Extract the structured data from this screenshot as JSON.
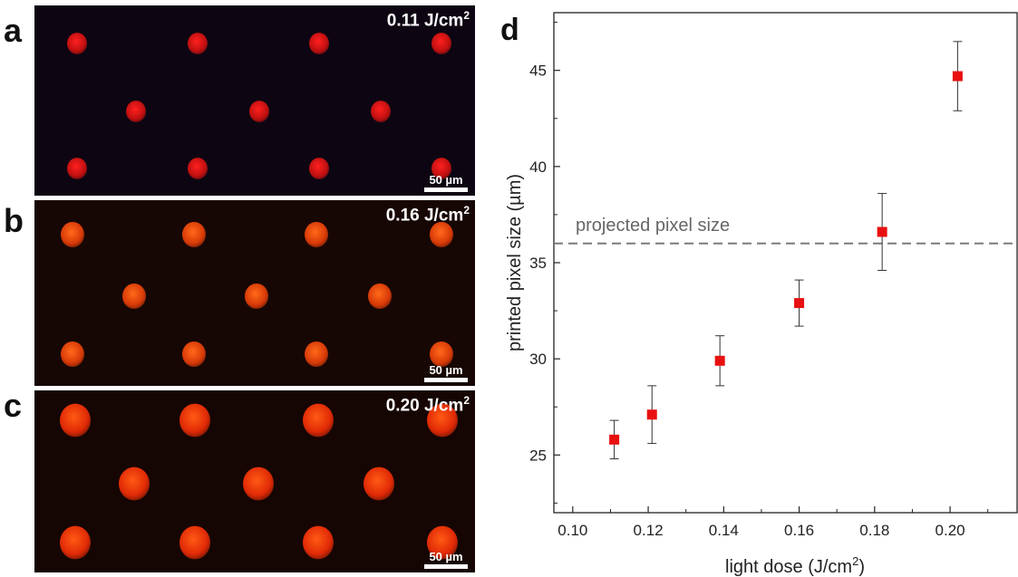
{
  "panels": [
    {
      "letter": "a",
      "dose_value": "0.11 J/cm",
      "dose_sup": "2",
      "scale_label": "50 µm",
      "color_core": "#ff2020",
      "color_edge": "#c01010",
      "bg": "#0d0612"
    },
    {
      "letter": "b",
      "dose_value": "0.16 J/cm",
      "dose_sup": "2",
      "scale_label": "50 µm",
      "color_core": "#ff6a1a",
      "color_edge": "#d83a08",
      "bg": "#170704"
    },
    {
      "letter": "c",
      "dose_value": "0.20 J/cm",
      "dose_sup": "2",
      "scale_label": "50 µm",
      "color_core": "#ff5a14",
      "color_edge": "#e02a06",
      "bg": "#160603"
    }
  ],
  "chart_panel_letter": "d",
  "chart_data": {
    "type": "scatter",
    "xlabel": "light dose (J/cm",
    "xlabel_sup": "2",
    "xlabel_end": ")",
    "ylabel": "printed pixel size (µm)",
    "xlim": [
      0.095,
      0.218
    ],
    "ylim": [
      22,
      48
    ],
    "x_ticks": [
      0.1,
      0.12,
      0.14,
      0.16,
      0.18,
      0.2
    ],
    "x_tick_labels": [
      "0.10",
      "0.12",
      "0.14",
      "0.16",
      "0.18",
      "0.20"
    ],
    "y_ticks": [
      25,
      30,
      35,
      40,
      45
    ],
    "y_tick_labels": [
      "25",
      "30",
      "35",
      "40",
      "45"
    ],
    "points": [
      {
        "x": 0.111,
        "y": 25.8,
        "err": 1.0
      },
      {
        "x": 0.121,
        "y": 27.1,
        "err": 1.5
      },
      {
        "x": 0.139,
        "y": 29.9,
        "err": 1.3
      },
      {
        "x": 0.16,
        "y": 32.9,
        "err": 1.2
      },
      {
        "x": 0.182,
        "y": 36.6,
        "err": 2.0
      },
      {
        "x": 0.202,
        "y": 44.7,
        "err": 1.8
      }
    ],
    "reference_line": {
      "y": 36,
      "label": "projected pixel size",
      "color": "#7a7a7a"
    },
    "marker_color": "#e81010",
    "grid": false
  }
}
